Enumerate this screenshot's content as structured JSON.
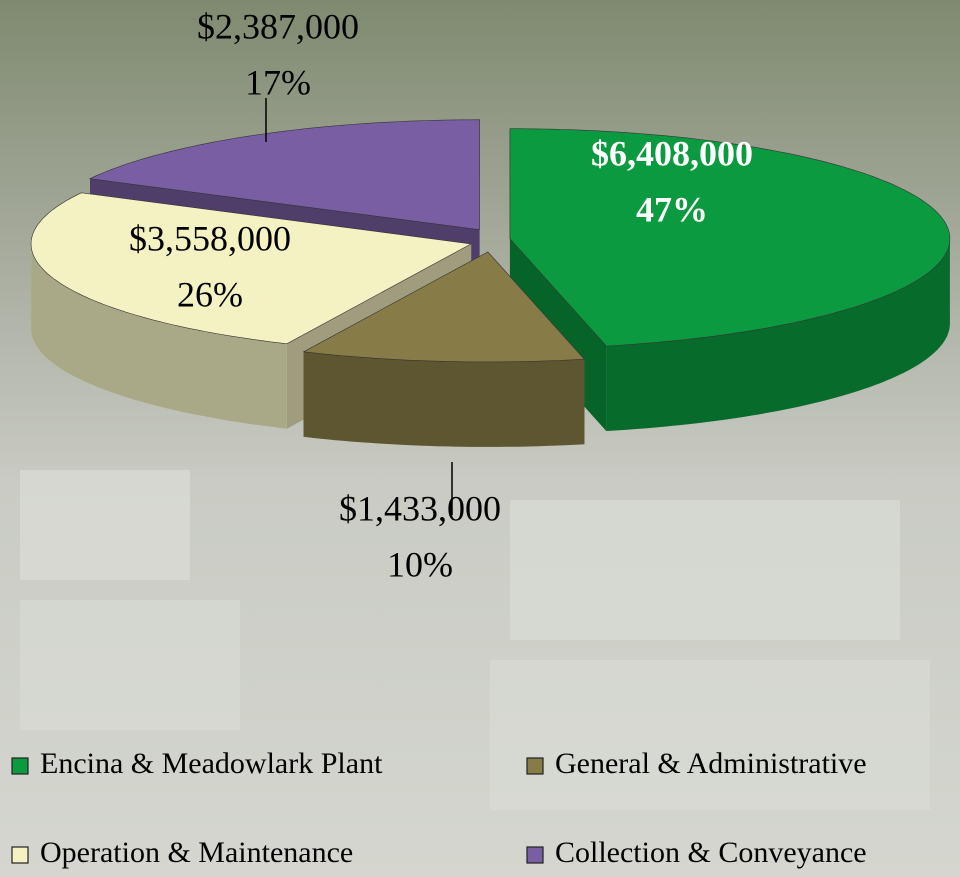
{
  "chart_data": {
    "type": "pie",
    "categories": [
      "Encina & Meadowlark Plant",
      "General & Administrative",
      "Operation & Maintenance",
      "Collection & Conveyance"
    ],
    "values": [
      6408000,
      1433000,
      3558000,
      2387000
    ],
    "value_labels": [
      [
        "$6,408,000",
        "47%"
      ],
      [
        "$1,433,000",
        "10%"
      ],
      [
        "$3,558,000",
        "26%"
      ],
      [
        "$2,387,000",
        "17%"
      ]
    ],
    "colors": [
      "#0b9a3f",
      "#877b47",
      "#f4f2c2",
      "#7a5ea4"
    ],
    "legend": "bottom"
  }
}
